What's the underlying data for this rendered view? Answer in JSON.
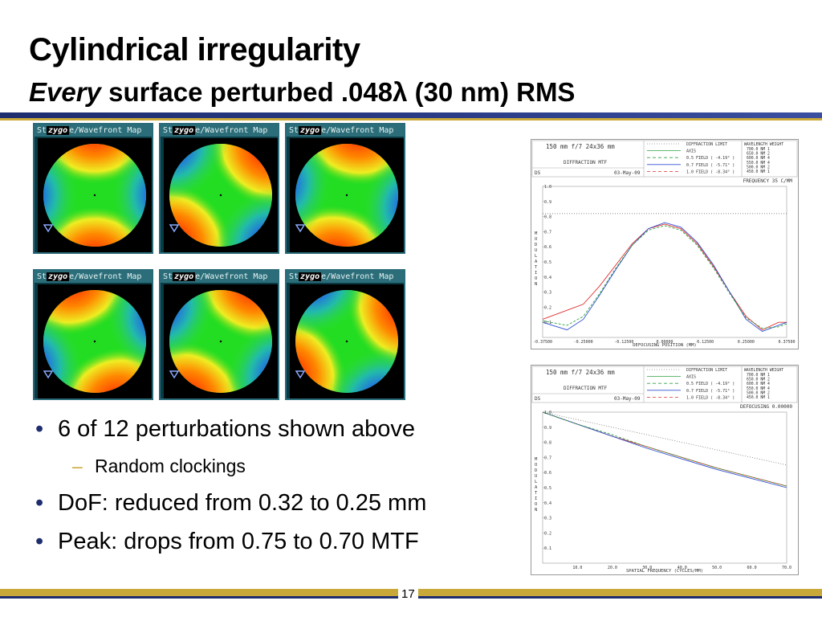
{
  "slide": {
    "title": "Cylindrical irregularity",
    "subtitle_em": "Every",
    "subtitle_rest": " surface perturbed .048λ (30 nm) RMS",
    "page_number": "17"
  },
  "panels": {
    "header_label": "e/Wavefront Map",
    "brand": "zygo",
    "prefix": "St"
  },
  "bullets": [
    {
      "text": "6 of 12 perturbations shown above"
    },
    {
      "text": "Random clockings"
    },
    {
      "text": "DoF: reduced from 0.32 to 0.25 mm"
    },
    {
      "text": "Peak: drops from 0.75 to 0.70 MTF"
    }
  ],
  "plot_common": {
    "lens": "150 mm f/7 24x36 mm",
    "kind": "DIFFRACTION MTF",
    "file": "DS",
    "date": "03-May-09",
    "legend": [
      "DIFFRACTION LIMIT",
      "AXIS",
      "0.5 FIELD ( -4.19° )",
      "0.7 FIELD ( -5.71° )",
      "1.0 FIELD ( -8.34° )"
    ],
    "wave_header": "WAVELENGTH   WEIGHT",
    "waves": [
      "700.0 NM   1",
      "650.0 NM   2",
      "600.0 NM   4",
      "550.0 NM   4",
      "500.0 NM   2",
      "450.0 NM   1"
    ],
    "ylabel": "MODULATION"
  },
  "chart_data": [
    {
      "type": "line",
      "title": "FREQUENCY  35 C/MM",
      "xlabel": "DEFOCUSING POSITION (MM)",
      "ylabel": "MODULATION",
      "x_ticks": [
        "-0.37500",
        "-0.25000",
        "-0.12500",
        "0.00000",
        "0.12500",
        "0.25000",
        "0.37500"
      ],
      "y_ticks": [
        "0.1",
        "0.2",
        "0.3",
        "0.4",
        "0.5",
        "0.6",
        "0.7",
        "0.8",
        "0.9",
        "1.0"
      ],
      "xlim": [
        -0.375,
        0.375
      ],
      "ylim": [
        0,
        1.0
      ],
      "diffraction_limit": 0.82,
      "series": [
        {
          "color": "#e03030",
          "x": [
            -0.375,
            -0.3,
            -0.25,
            -0.2,
            -0.15,
            -0.1,
            -0.05,
            0,
            0.05,
            0.1,
            0.15,
            0.2,
            0.25,
            0.3,
            0.35,
            0.375
          ],
          "y": [
            0.12,
            0.18,
            0.22,
            0.34,
            0.48,
            0.62,
            0.72,
            0.75,
            0.72,
            0.62,
            0.47,
            0.3,
            0.14,
            0.05,
            0.1,
            0.1
          ]
        },
        {
          "color": "#3050d0",
          "x": [
            -0.375,
            -0.3,
            -0.25,
            -0.2,
            -0.15,
            -0.1,
            -0.05,
            0,
            0.05,
            0.1,
            0.15,
            0.2,
            0.25,
            0.3,
            0.35,
            0.375
          ],
          "y": [
            0.1,
            0.05,
            0.12,
            0.28,
            0.45,
            0.61,
            0.72,
            0.76,
            0.73,
            0.63,
            0.48,
            0.3,
            0.12,
            0.04,
            0.08,
            0.1
          ]
        },
        {
          "color": "#30a040",
          "x": [
            -0.375,
            -0.3,
            -0.25,
            -0.2,
            -0.15,
            -0.1,
            -0.05,
            0,
            0.05,
            0.1,
            0.15,
            0.2,
            0.25,
            0.3,
            0.35,
            0.375
          ],
          "y": [
            0.11,
            0.08,
            0.14,
            0.29,
            0.46,
            0.61,
            0.71,
            0.74,
            0.71,
            0.61,
            0.46,
            0.29,
            0.13,
            0.06,
            0.07,
            0.09
          ]
        }
      ]
    },
    {
      "type": "line",
      "title": "DEFOCUSING  0.00000",
      "xlabel": "SPATIAL FREQUENCY (CYCLES/MM)",
      "ylabel": "MODULATION",
      "x_ticks": [
        "10.0",
        "20.0",
        "30.0",
        "40.0",
        "50.0",
        "60.0",
        "70.0"
      ],
      "y_ticks": [
        "0.1",
        "0.2",
        "0.3",
        "0.4",
        "0.5",
        "0.6",
        "0.7",
        "0.8",
        "0.9",
        "1.0"
      ],
      "xlim": [
        0,
        70
      ],
      "ylim": [
        0,
        1.0
      ],
      "diffraction_limit_series": {
        "x": [
          0,
          70
        ],
        "y": [
          1.0,
          0.65
        ]
      },
      "series": [
        {
          "color": "#e03030",
          "x": [
            0,
            10,
            20,
            30,
            40,
            50,
            60,
            70
          ],
          "y": [
            1.0,
            0.92,
            0.84,
            0.77,
            0.7,
            0.63,
            0.57,
            0.51
          ]
        },
        {
          "color": "#3050d0",
          "x": [
            0,
            10,
            20,
            30,
            40,
            50,
            60,
            70
          ],
          "y": [
            1.0,
            0.92,
            0.84,
            0.76,
            0.69,
            0.62,
            0.56,
            0.5
          ]
        },
        {
          "color": "#30a040",
          "x": [
            0,
            10,
            20,
            30,
            40,
            50,
            60,
            70
          ],
          "y": [
            1.0,
            0.92,
            0.85,
            0.77,
            0.7,
            0.63,
            0.57,
            0.51
          ]
        }
      ]
    }
  ]
}
